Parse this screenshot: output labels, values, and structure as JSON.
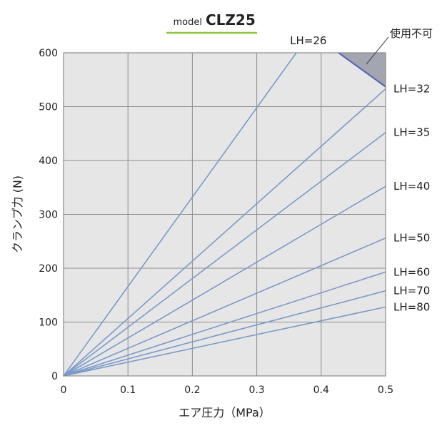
{
  "chart_data": {
    "type": "line",
    "title_prefix": "model",
    "title": "CLZ25",
    "xlabel": "エア圧力（MPa）",
    "ylabel": "クランプ力 (N)",
    "xlim": [
      0,
      0.5
    ],
    "ylim": [
      0,
      600
    ],
    "x_ticks": [
      "0",
      "0.1",
      "0.2",
      "0.3",
      "0.4",
      "0.5"
    ],
    "y_ticks": [
      "0",
      "100",
      "200",
      "300",
      "400",
      "500",
      "600"
    ],
    "grid": true,
    "series": [
      {
        "name": "LH=26",
        "x": [
          0,
          0.5
        ],
        "y": [
          0,
          830
        ]
      },
      {
        "name": "LH=32",
        "x": [
          0,
          0.5
        ],
        "y": [
          0,
          533
        ]
      },
      {
        "name": "LH=35",
        "x": [
          0,
          0.5
        ],
        "y": [
          0,
          452
        ]
      },
      {
        "name": "LH=40",
        "x": [
          0,
          0.5
        ],
        "y": [
          0,
          352
        ]
      },
      {
        "name": "LH=50",
        "x": [
          0,
          0.5
        ],
        "y": [
          0,
          256
        ]
      },
      {
        "name": "LH=60",
        "x": [
          0,
          0.5
        ],
        "y": [
          0,
          193
        ]
      },
      {
        "name": "LH=70",
        "x": [
          0,
          0.5
        ],
        "y": [
          0,
          158
        ]
      },
      {
        "name": "LH=80",
        "x": [
          0,
          0.5
        ],
        "y": [
          0,
          128
        ]
      }
    ],
    "unusable_region": {
      "label": "使用不可",
      "boundary_x": [
        0.427,
        0.5
      ],
      "boundary_y": [
        600,
        537
      ]
    }
  },
  "colors": {
    "plot_background": "#e6e6e6",
    "grid": "#8c8c8c",
    "line": "#7a9ac9",
    "unusable_fill": "#a3a6b0",
    "unusable_edge": "#5865b8",
    "title_underline": "#8cc63f"
  }
}
